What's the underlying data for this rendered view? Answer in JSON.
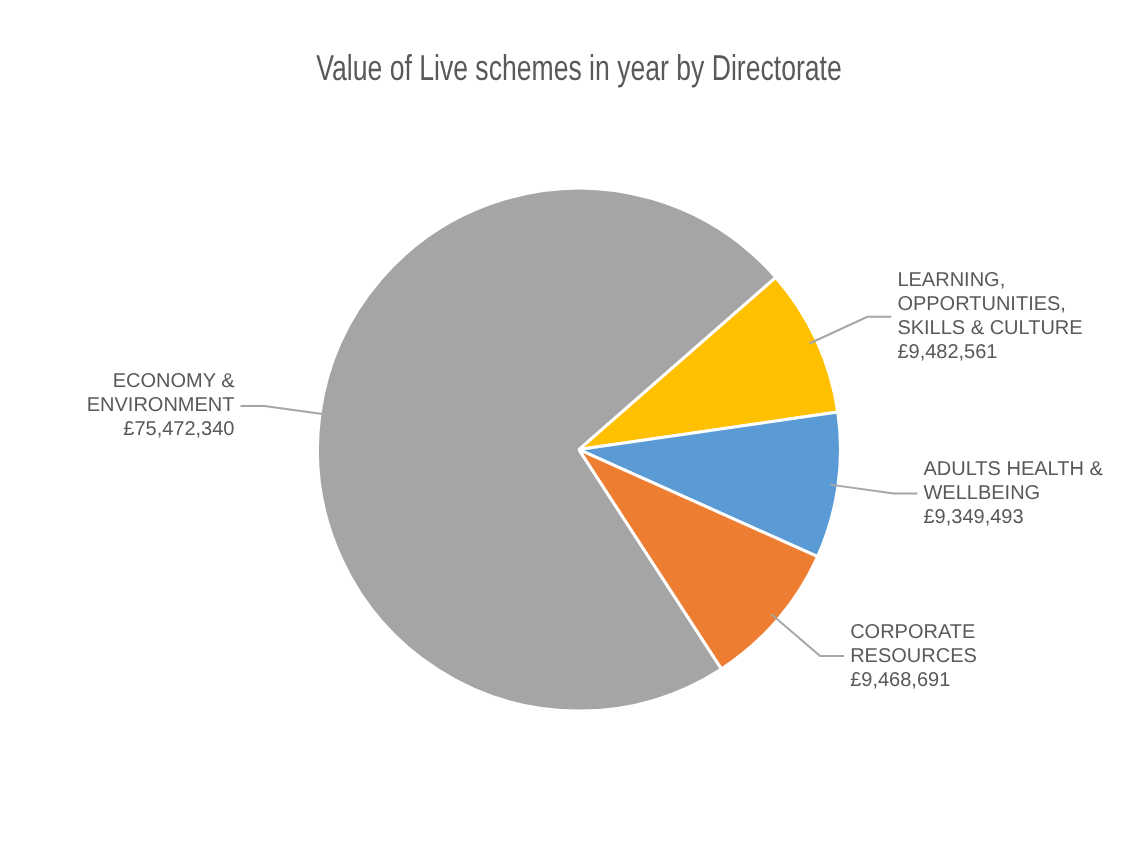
{
  "chart_data": {
    "type": "pie",
    "title": "Value of Live schemes in year by Directorate",
    "categories": [
      "ECONOMY & ENVIRONMENT",
      "LEARNING, OPPORTUNITIES, SKILLS & CULTURE",
      "ADULTS HEALTH & WELLBEING",
      "CORPORATE RESOURCES"
    ],
    "values": [
      75472340,
      9482561,
      9349493,
      9468691
    ],
    "value_labels": [
      "£75,472,340",
      "£9,482,561",
      "£9,349,493",
      "£9,468,691"
    ],
    "colors": [
      "#a5a5a5",
      "#ffc000",
      "#5b9bd5",
      "#ed7d31"
    ],
    "legend": false
  }
}
